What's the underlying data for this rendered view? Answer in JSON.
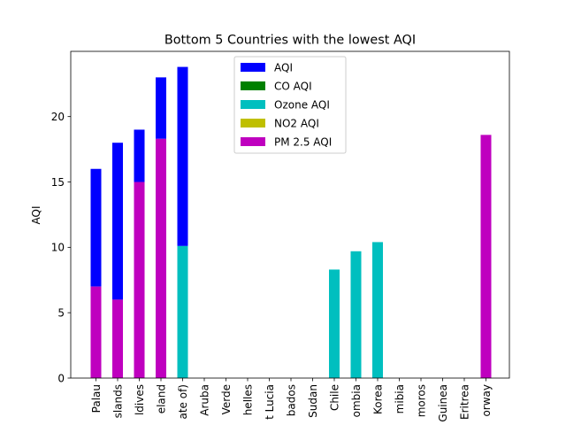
{
  "chart_data": {
    "type": "bar",
    "stacked": true,
    "title": "Bottom 5 Countries with the lowest AQI",
    "xlabel": "",
    "ylabel": "AQI",
    "ylim": [
      0,
      24.99
    ],
    "yticks": [
      0,
      5,
      10,
      15,
      20
    ],
    "categories": [
      "Palau",
      "Islands",
      "Maldives",
      "Iceland",
      "State of)",
      "Aruba",
      "Verde",
      "Seychelles",
      "Saint Lucia",
      "Barbados",
      "Sudan",
      "Chile",
      "Colombia",
      "Korea",
      "Namibia",
      "Comoros",
      "Guinea",
      "Eritrea",
      "Norway"
    ],
    "categories_visible": [
      "Palau",
      "slands",
      "ldives",
      "eland",
      "ate of)",
      "Aruba",
      "Verde",
      "helles",
      "t Lucia",
      "bados",
      "Sudan",
      "Chile",
      "ombia",
      "Korea",
      "mibia",
      "moros",
      "Guinea",
      "Eritrea",
      "orway"
    ],
    "series": [
      {
        "name": "AQI",
        "color": "#0000ff",
        "bottom": "PM 2.5 AQI",
        "values": [
          9,
          12,
          4,
          4.7,
          0,
          0,
          0,
          0,
          0,
          0,
          0,
          0,
          0,
          0,
          0,
          0,
          0,
          0,
          0
        ]
      },
      {
        "name": "CO AQI",
        "color": "#008000",
        "values": [
          0,
          0,
          0,
          0,
          0,
          0,
          0,
          0,
          0,
          0,
          0,
          0,
          0,
          0,
          0,
          0,
          0,
          0,
          0
        ]
      },
      {
        "name": "Ozone AQI",
        "color": "#00bfbf",
        "values": [
          0,
          0,
          0,
          0,
          10.1,
          0,
          0,
          0,
          0,
          0,
          0,
          8.3,
          9.7,
          10.4,
          0,
          0,
          0,
          0,
          0
        ]
      },
      {
        "name": "NO2 AQI",
        "color": "#bfbf00",
        "values": [
          0,
          0,
          0,
          0,
          0,
          0,
          0,
          0,
          0,
          0,
          0,
          0,
          0,
          0,
          0,
          0,
          0,
          0,
          0
        ]
      },
      {
        "name": "PM 2.5 AQI",
        "color": "#bf00bf",
        "values": [
          7,
          6,
          15,
          18.3,
          0,
          0,
          0,
          0,
          0,
          0,
          0,
          0,
          0,
          0,
          0,
          0,
          0,
          0,
          18.6
        ]
      }
    ],
    "aqi_top_for_state_of": 23.8,
    "legend": {
      "position": "top-center",
      "entries": [
        "AQI",
        "CO AQI",
        "Ozone AQI",
        "NO2 AQI",
        "PM 2.5 AQI"
      ]
    }
  }
}
